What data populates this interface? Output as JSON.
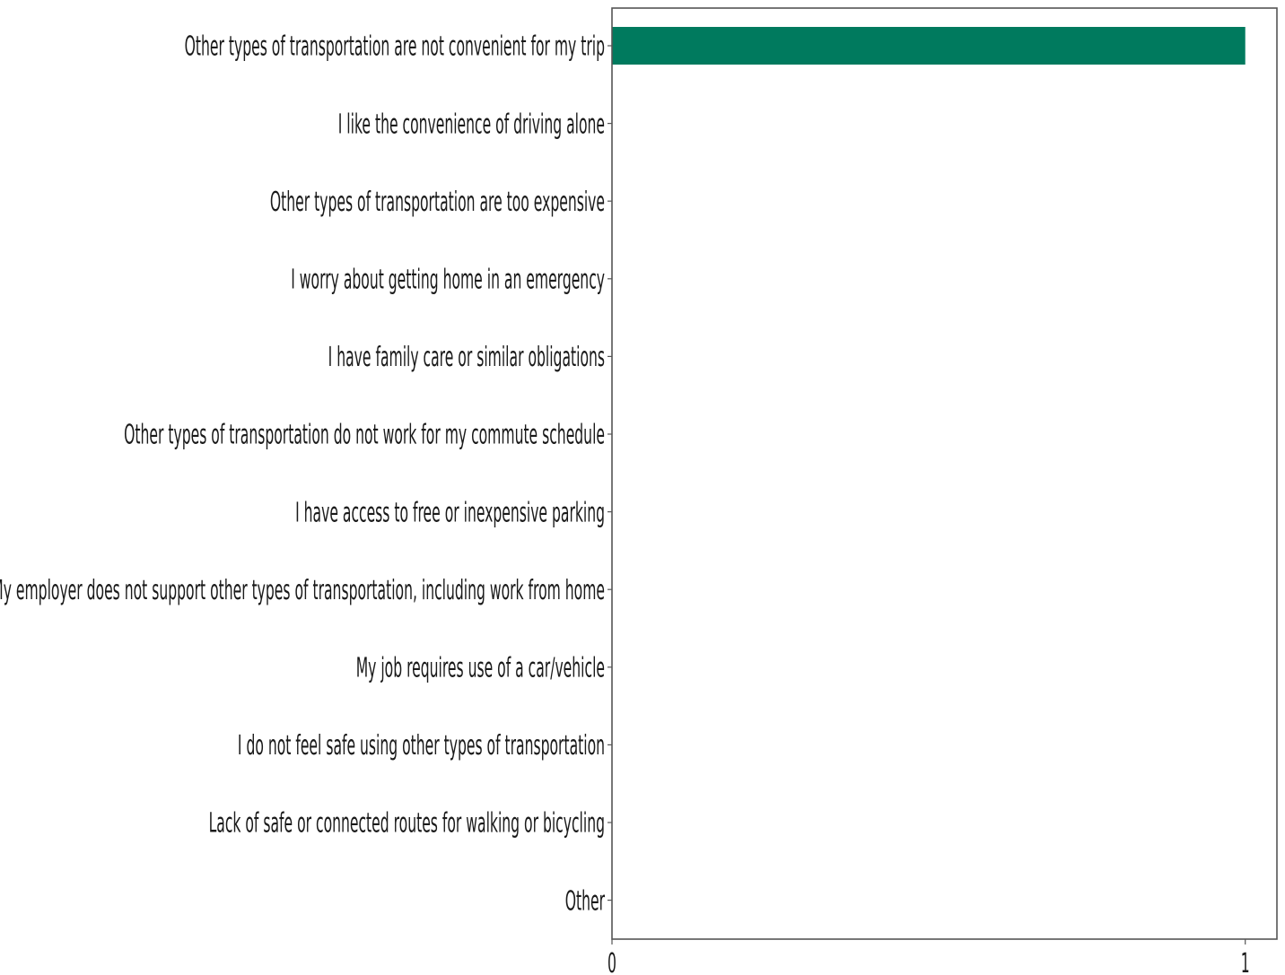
{
  "chart_data": {
    "type": "bar",
    "orientation": "horizontal",
    "categories": [
      "Other types of transportation are not convenient for my trip",
      "I like the convenience of driving alone",
      "Other types of transportation are too expensive",
      "I worry about getting home in an emergency",
      "I have family care or similar obligations",
      "Other types of transportation do not work for my commute schedule",
      "I have access to free or inexpensive parking",
      "My employer does not support other types of transportation, including work from home",
      "My job requires use of a car/vehicle",
      "I do not feel safe using other types of transportation",
      "Lack of safe or connected routes for walking or bicycling",
      "Other"
    ],
    "values": [
      1,
      0,
      0,
      0,
      0,
      0,
      0,
      0,
      0,
      0,
      0,
      0
    ],
    "xlim": [
      0,
      1.05
    ],
    "xticks": [
      0,
      1
    ],
    "xtick_labels": [
      "0",
      "1"
    ],
    "title": "",
    "xlabel": "",
    "ylabel": "",
    "grid": false,
    "bar_color": "#007a5e",
    "axis_color": "#555555"
  }
}
